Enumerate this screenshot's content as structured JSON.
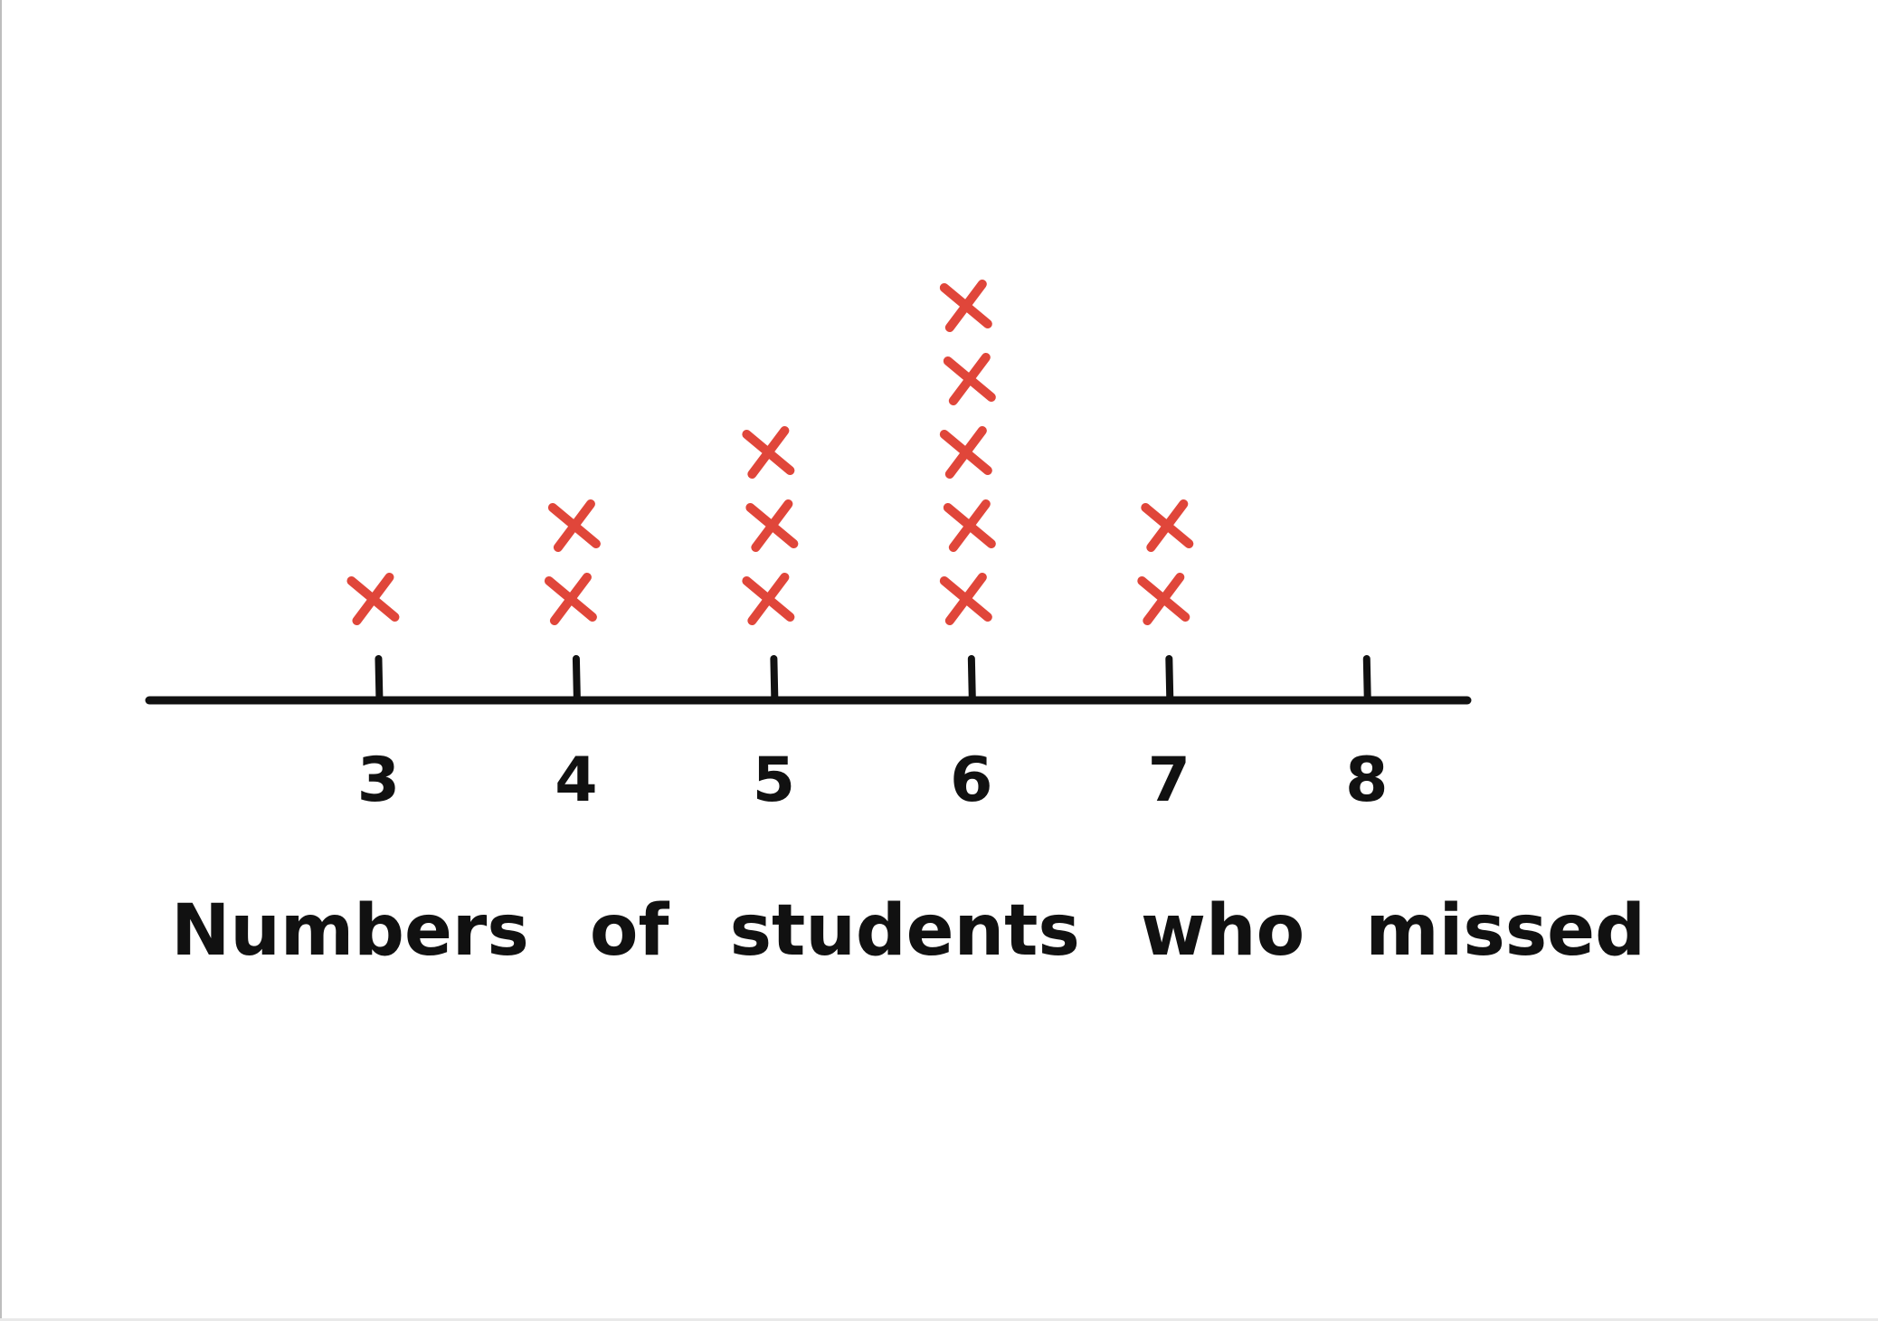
{
  "chart_data": {
    "type": "scatter",
    "subtype": "dot-plot",
    "title": "",
    "xlabel": "Numbers of students who missed",
    "ylabel": "",
    "categories": [
      "3",
      "4",
      "5",
      "6",
      "7",
      "8"
    ],
    "x": [
      3,
      4,
      5,
      6,
      7,
      8
    ],
    "counts": [
      1,
      2,
      3,
      5,
      2,
      0
    ],
    "xlim": [
      2,
      8.5
    ],
    "marker": "x",
    "grid": false,
    "legend": "none",
    "mark_color": "#e0463a",
    "axis_color": "#111111"
  }
}
